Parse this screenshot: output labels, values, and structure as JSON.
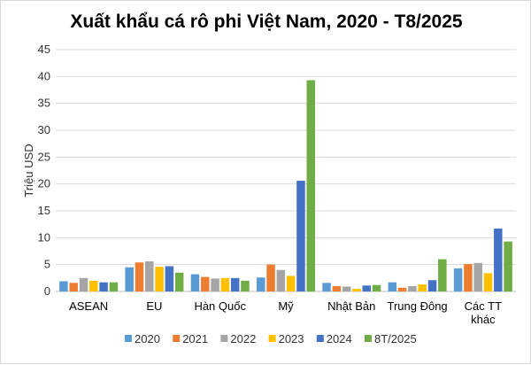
{
  "chart_data": {
    "type": "bar",
    "title": "Xuất khẩu cá rô phi Việt Nam, 2020 - T8/2025",
    "xlabel": "",
    "ylabel": "Triệu USD",
    "ylim": [
      0,
      45
    ],
    "yticks": [
      0,
      5,
      10,
      15,
      20,
      25,
      30,
      35,
      40,
      45
    ],
    "grid": true,
    "legend": "bottom",
    "categories": [
      [
        "ASEAN"
      ],
      [
        "EU"
      ],
      [
        "Hàn Quốc"
      ],
      [
        "Mỹ"
      ],
      [
        "Nhật Bản"
      ],
      [
        "Trung Đông"
      ],
      [
        "Các TT",
        "khác"
      ]
    ],
    "series": [
      {
        "name": "2020",
        "color": "#5B9BD5",
        "values": [
          1.9,
          4.5,
          3.2,
          2.6,
          1.6,
          1.7,
          4.3
        ]
      },
      {
        "name": "2021",
        "color": "#ED7D31",
        "values": [
          1.6,
          5.4,
          2.7,
          5.0,
          1.0,
          0.7,
          5.1
        ]
      },
      {
        "name": "2022",
        "color": "#A5A5A5",
        "values": [
          2.5,
          5.6,
          2.4,
          4.0,
          0.9,
          1.0,
          5.3
        ]
      },
      {
        "name": "2023",
        "color": "#FFC000",
        "values": [
          2.0,
          4.6,
          2.5,
          2.9,
          0.5,
          1.3,
          3.4
        ]
      },
      {
        "name": "2024",
        "color": "#4472C4",
        "values": [
          1.7,
          4.7,
          2.5,
          20.6,
          1.1,
          2.1,
          11.7
        ]
      },
      {
        "name": "8T/2025",
        "color": "#70AD47",
        "values": [
          1.7,
          3.5,
          2.0,
          39.3,
          1.2,
          6.0,
          9.3
        ]
      }
    ]
  }
}
